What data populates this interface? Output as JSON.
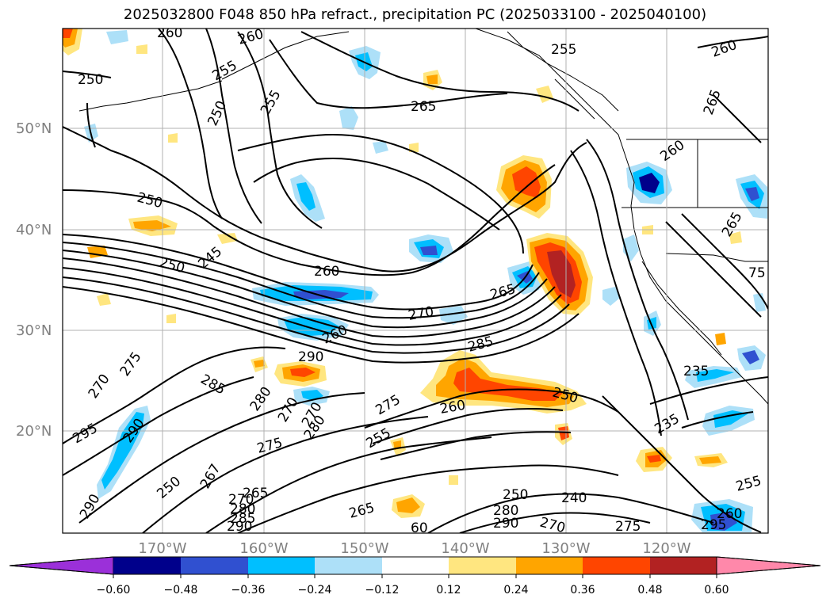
{
  "title": "2025032800 F048 850 hPa refract., precipitation PC (2025033100 - 2025040100)",
  "lat_labels": [
    "50°N",
    "40°N",
    "30°N",
    "20°N"
  ],
  "lon_labels": [
    "170°W",
    "160°W",
    "150°W",
    "140°W",
    "130°W",
    "120°W"
  ],
  "contour_labels": [
    {
      "text": "260"
    },
    {
      "text": "260"
    },
    {
      "text": "255"
    },
    {
      "text": "260"
    },
    {
      "text": "250"
    },
    {
      "text": "255"
    },
    {
      "text": "250"
    },
    {
      "text": "255"
    },
    {
      "text": "265"
    },
    {
      "text": "265"
    },
    {
      "text": "260"
    },
    {
      "text": "250"
    },
    {
      "text": "250"
    },
    {
      "text": "245"
    },
    {
      "text": "260"
    },
    {
      "text": "265"
    },
    {
      "text": "265"
    },
    {
      "text": "275"
    },
    {
      "text": "270"
    },
    {
      "text": "260"
    },
    {
      "text": "270"
    },
    {
      "text": "290"
    },
    {
      "text": "285"
    },
    {
      "text": "285"
    },
    {
      "text": "235"
    },
    {
      "text": "270"
    },
    {
      "text": "280"
    },
    {
      "text": "275"
    },
    {
      "text": "250"
    },
    {
      "text": "260"
    },
    {
      "text": "295"
    },
    {
      "text": "290"
    },
    {
      "text": "270"
    },
    {
      "text": "280"
    },
    {
      "text": "275"
    },
    {
      "text": "255"
    },
    {
      "text": "235"
    },
    {
      "text": "290"
    },
    {
      "text": "250"
    },
    {
      "text": "267"
    },
    {
      "text": "265"
    },
    {
      "text": "270"
    },
    {
      "text": "280"
    },
    {
      "text": "285"
    },
    {
      "text": "290"
    },
    {
      "text": "265"
    },
    {
      "text": "250"
    },
    {
      "text": "280"
    },
    {
      "text": "290"
    },
    {
      "text": "240"
    },
    {
      "text": "270"
    },
    {
      "text": "275"
    },
    {
      "text": "255"
    },
    {
      "text": "260"
    },
    {
      "text": "295"
    },
    {
      "text": "60"
    },
    {
      "text": "75"
    }
  ],
  "colorbar": {
    "ticks": [
      "−0.60",
      "−0.48",
      "−0.36",
      "−0.24",
      "−0.12",
      "0.12",
      "0.24",
      "0.36",
      "0.48",
      "0.60"
    ],
    "colors": [
      "#9B30D9",
      "#00008B",
      "#3050D0",
      "#00BFFF",
      "#ADE0F8",
      "#FFFFFF",
      "#FFE680",
      "#FFA500",
      "#FF4500",
      "#B22222",
      "#FF88AA"
    ]
  },
  "precip_colors": {
    "neg_light": "#ADE0F8",
    "neg_mid": "#00BFFF",
    "neg_dark": "#3050D0",
    "neg_darkest": "#00008B",
    "pos_light": "#FFE680",
    "pos_mid": "#FFA500",
    "pos_dark": "#FF4500",
    "pos_darkest": "#B22222"
  }
}
